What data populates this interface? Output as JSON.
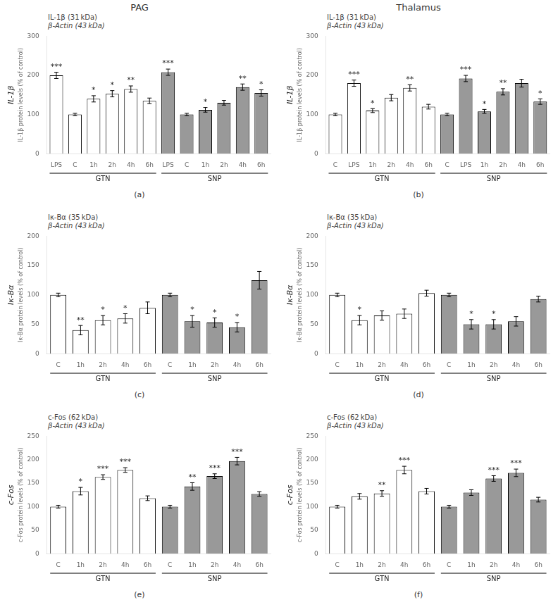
{
  "chart_data": [
    {
      "type": "bar",
      "title": "PAG",
      "ylabel": "IL-1β protein levels (% of control)",
      "side_label": "IL-1β",
      "panel_label": "(a)",
      "blot_labels": [
        "IL-1β (31 kDa)",
        "β-Actin (43 kDa)"
      ],
      "group_labels": [
        "GTN",
        "SNP"
      ],
      "categories": [
        "LPS",
        "C",
        "1h",
        "2h",
        "4h",
        "6h",
        "LPS",
        "C",
        "1h",
        "2h",
        "4h",
        "6h"
      ],
      "values": [
        200,
        100,
        140,
        153,
        165,
        135,
        208,
        100,
        112,
        130,
        170,
        155
      ],
      "errors": [
        8,
        3,
        8,
        8,
        8,
        7,
        8,
        3,
        6,
        6,
        8,
        8
      ],
      "stars": [
        "***",
        null,
        "*",
        "*",
        "**",
        null,
        "***",
        null,
        "*",
        null,
        "**",
        "*"
      ],
      "colors": [
        "#ffffff",
        "#ffffff",
        "#ffffff",
        "#ffffff",
        "#ffffff",
        "#ffffff",
        "#999999",
        "#999999",
        "#999999",
        "#999999",
        "#999999",
        "#999999"
      ],
      "ylim": [
        0,
        300
      ],
      "yticks": [
        0,
        100,
        200,
        300
      ],
      "grid": false
    },
    {
      "type": "bar",
      "title": "Thalamus",
      "ylabel": "IL-1β protein levels (% of control)",
      "side_label": "IL-1β",
      "panel_label": "(b)",
      "blot_labels": [
        "IL-1β (31 kDa)",
        "β-Actin (43 kDa)"
      ],
      "group_labels": [
        "GTN",
        "SNP"
      ],
      "categories": [
        "C",
        "LPS",
        "1h",
        "2h",
        "4h",
        "6h",
        "C",
        "LPS",
        "1h",
        "2h",
        "4h",
        "6h"
      ],
      "values": [
        100,
        180,
        110,
        143,
        168,
        120,
        100,
        192,
        108,
        158,
        180,
        133
      ],
      "errors": [
        3,
        8,
        5,
        8,
        8,
        6,
        3,
        8,
        5,
        8,
        10,
        7
      ],
      "stars": [
        null,
        "***",
        "*",
        null,
        "**",
        null,
        null,
        "***",
        "*",
        "**",
        null,
        "*"
      ],
      "colors": [
        "#ffffff",
        "#ffffff",
        "#ffffff",
        "#ffffff",
        "#ffffff",
        "#ffffff",
        "#999999",
        "#999999",
        "#999999",
        "#999999",
        "#999999",
        "#999999"
      ],
      "ylim": [
        0,
        300
      ],
      "yticks": [
        0,
        100,
        200,
        300
      ],
      "grid": false
    },
    {
      "type": "bar",
      "ylabel": "Iκ-Bα protein levels (% of control)",
      "side_label": "Iκ-Bα",
      "panel_label": "(c)",
      "blot_labels": [
        "Iκ-Bα (35 kDa)",
        "β-Actin (43 kDa)"
      ],
      "group_labels": [
        "GTN",
        "SNP"
      ],
      "categories": [
        "C",
        "1h",
        "2h",
        "4h",
        "6h",
        "C",
        "1h",
        "2h",
        "4h",
        "6h"
      ],
      "values": [
        100,
        40,
        57,
        60,
        78,
        100,
        55,
        53,
        45,
        125
      ],
      "errors": [
        3,
        8,
        8,
        8,
        10,
        3,
        10,
        8,
        8,
        15
      ],
      "stars": [
        null,
        "**",
        "*",
        "*",
        null,
        null,
        "*",
        "*",
        "*",
        null
      ],
      "colors": [
        "#ffffff",
        "#ffffff",
        "#ffffff",
        "#ffffff",
        "#ffffff",
        "#999999",
        "#999999",
        "#999999",
        "#999999",
        "#999999"
      ],
      "ylim": [
        0,
        200
      ],
      "yticks": [
        0,
        50,
        100,
        150,
        200
      ],
      "grid": false
    },
    {
      "type": "bar",
      "ylabel": "Iκ-Bα protein levels (% of control)",
      "side_label": "Iκ-Bα",
      "panel_label": "(d)",
      "blot_labels": [
        "Iκ-Bα (35 kDa)",
        "β-Actin (43 kDa)"
      ],
      "group_labels": [
        "GTN",
        "SNP"
      ],
      "categories": [
        "C",
        "1h",
        "2h",
        "4h",
        "6h",
        "C",
        "1h",
        "2h",
        "4h",
        "6h"
      ],
      "values": [
        100,
        57,
        65,
        68,
        103,
        100,
        50,
        50,
        55,
        93
      ],
      "errors": [
        3,
        8,
        8,
        8,
        5,
        3,
        8,
        8,
        8,
        5
      ],
      "stars": [
        null,
        "*",
        null,
        null,
        null,
        null,
        "*",
        "*",
        null,
        null
      ],
      "colors": [
        "#ffffff",
        "#ffffff",
        "#ffffff",
        "#ffffff",
        "#ffffff",
        "#999999",
        "#999999",
        "#999999",
        "#999999",
        "#999999"
      ],
      "ylim": [
        0,
        200
      ],
      "yticks": [
        0,
        50,
        100,
        150,
        200
      ],
      "grid": false
    },
    {
      "type": "bar",
      "ylabel": "c-Fos protein levels (% of control)",
      "side_label": "c-Fos",
      "panel_label": "(e)",
      "blot_labels": [
        "c-Fos (62 kDa)",
        "β-Actin (43 kDa)"
      ],
      "group_labels": [
        "GTN",
        "SNP"
      ],
      "categories": [
        "C",
        "1h",
        "2h",
        "4h",
        "6h",
        "C",
        "1h",
        "2h",
        "4h",
        "6h"
      ],
      "values": [
        100,
        133,
        163,
        178,
        118,
        100,
        143,
        165,
        197,
        127
      ],
      "errors": [
        3,
        8,
        5,
        5,
        5,
        3,
        8,
        5,
        8,
        5
      ],
      "stars": [
        null,
        "*",
        "***",
        "***",
        null,
        null,
        "**",
        "***",
        "***",
        null
      ],
      "colors": [
        "#ffffff",
        "#ffffff",
        "#ffffff",
        "#ffffff",
        "#ffffff",
        "#999999",
        "#999999",
        "#999999",
        "#999999",
        "#999999"
      ],
      "ylim": [
        0,
        250
      ],
      "yticks": [
        0,
        50,
        100,
        150,
        200,
        250
      ],
      "grid": false
    },
    {
      "type": "bar",
      "ylabel": "c-Fos protein levels (% of control)",
      "side_label": "c-Fos",
      "panel_label": "(f)",
      "blot_labels": [
        "c-Fos (62 kDa)",
        "β-Actin (43 kDa)"
      ],
      "group_labels": [
        "GTN",
        "SNP"
      ],
      "categories": [
        "C",
        "1h",
        "2h",
        "4h",
        "6h",
        "C",
        "1h",
        "2h",
        "4h",
        "6h"
      ],
      "values": [
        100,
        122,
        128,
        178,
        133,
        100,
        130,
        160,
        172,
        115
      ],
      "errors": [
        3,
        6,
        6,
        8,
        6,
        3,
        6,
        6,
        8,
        5
      ],
      "stars": [
        null,
        null,
        "**",
        "***",
        null,
        null,
        null,
        "***",
        "***",
        null
      ],
      "colors": [
        "#ffffff",
        "#ffffff",
        "#ffffff",
        "#ffffff",
        "#ffffff",
        "#999999",
        "#999999",
        "#999999",
        "#999999",
        "#999999"
      ],
      "ylim": [
        0,
        250
      ],
      "yticks": [
        0,
        50,
        100,
        150,
        200,
        250
      ],
      "grid": false
    }
  ]
}
